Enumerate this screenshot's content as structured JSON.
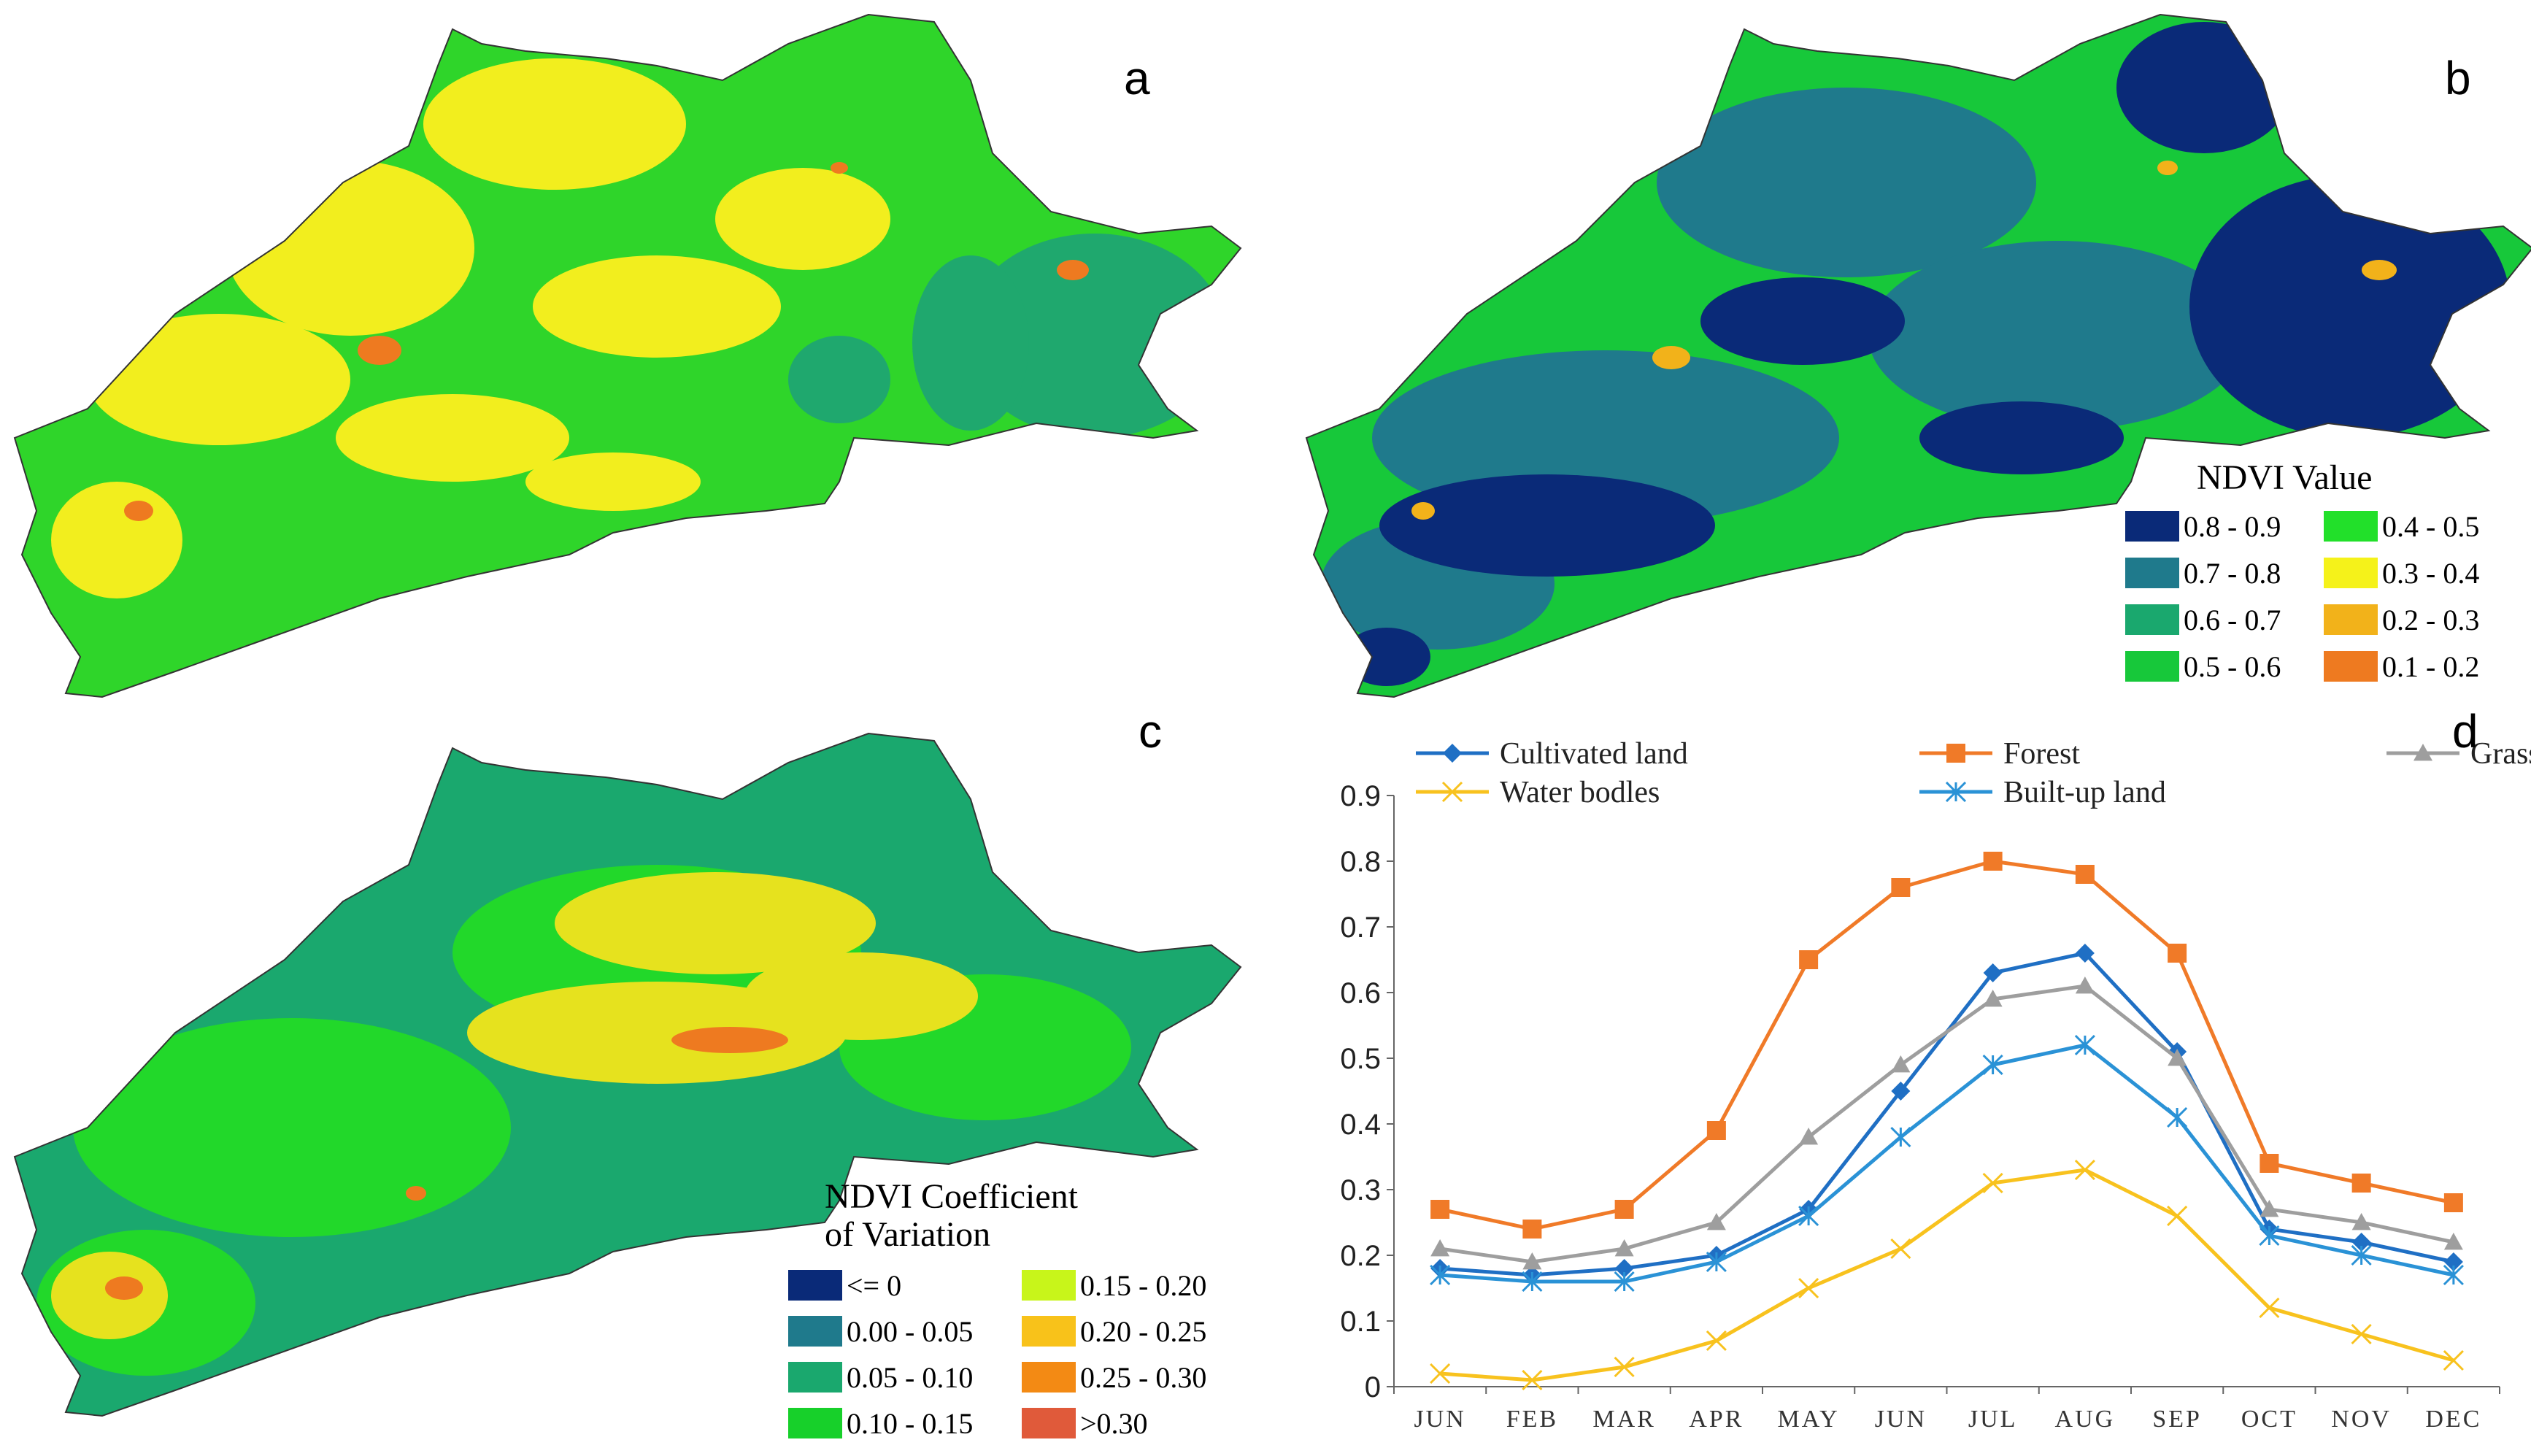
{
  "panels": {
    "a": {
      "letter": "a"
    },
    "b": {
      "letter": "b"
    },
    "c": {
      "letter": "c"
    },
    "d": {
      "letter": "d"
    }
  },
  "ndvi_legend": {
    "title": "NDVI Value",
    "items": [
      {
        "label": "0.8 - 0.9",
        "color": "#0a2a78"
      },
      {
        "label": "0.7 - 0.8",
        "color": "#1f7a8c"
      },
      {
        "label": "0.6 - 0.7",
        "color": "#1aa86e"
      },
      {
        "label": "0.5 - 0.6",
        "color": "#17c83a"
      },
      {
        "label": "0.4 - 0.5",
        "color": "#22e02a"
      },
      {
        "label": "0.3 - 0.4",
        "color": "#f5f21a"
      },
      {
        "label": "0.2 - 0.3",
        "color": "#f2b21a"
      },
      {
        "label": "0.1 - 0.2",
        "color": "#ee7a20"
      }
    ]
  },
  "cv_legend": {
    "title_line1": "NDVI  Coefficient",
    "title_line2": "of Variation",
    "items": [
      {
        "label": "<= 0",
        "color": "#0a2a78"
      },
      {
        "label": "0.00 - 0.05",
        "color": "#1f7a8c"
      },
      {
        "label": "0.05 - 0.10",
        "color": "#1aa86e"
      },
      {
        "label": "0.10 - 0.15",
        "color": "#17d02a"
      },
      {
        "label": "0.15 - 0.20",
        "color": "#c8f51a"
      },
      {
        "label": "0.20 - 0.25",
        "color": "#f8c21a"
      },
      {
        "label": "0.25 - 0.30",
        "color": "#f38a14"
      },
      {
        "label": ">0.30",
        "color": "#e05a3a"
      }
    ]
  },
  "map_colors": {
    "a": {
      "base": "#2fd52a",
      "secondary": "#f2ee1e",
      "tertiary": "#1fa86e",
      "accent": "#ee7a20"
    },
    "b": {
      "base": "#17c83a",
      "secondary": "#1f7a8c",
      "tertiary": "#0a2a78",
      "accent": "#f2b21a"
    },
    "c": {
      "base": "#1aa86e",
      "secondary": "#22d82a",
      "tertiary": "#e6e21e",
      "accent": "#ee7a20"
    }
  },
  "chart_data": {
    "type": "line",
    "categories": [
      "JUN",
      "FEB",
      "MAR",
      "APR",
      "MAY",
      "JUN",
      "JUL",
      "AUG",
      "SEP",
      "OCT",
      "NOV",
      "DEC"
    ],
    "ylim": [
      0,
      0.9
    ],
    "yticks": [
      "0",
      "0.1",
      "0.2",
      "0.3",
      "0.4",
      "0.5",
      "0.6",
      "0.7",
      "0.8",
      "0.9"
    ],
    "ytick_values": [
      0,
      0.1,
      0.2,
      0.3,
      0.4,
      0.5,
      0.6,
      0.7,
      0.8,
      0.9
    ],
    "xlabel": "",
    "ylabel": "",
    "series": [
      {
        "name": "Cultivated land",
        "color": "#1f6fc4",
        "marker": "diamond",
        "values": [
          0.18,
          0.17,
          0.18,
          0.2,
          0.27,
          0.45,
          0.63,
          0.66,
          0.51,
          0.24,
          0.22,
          0.19
        ]
      },
      {
        "name": "Forest",
        "color": "#f07a28",
        "marker": "square",
        "values": [
          0.27,
          0.24,
          0.27,
          0.39,
          0.65,
          0.76,
          0.8,
          0.78,
          0.66,
          0.34,
          0.31,
          0.28
        ]
      },
      {
        "name": "Grassland",
        "color": "#9e9e9e",
        "marker": "triangle",
        "values": [
          0.21,
          0.19,
          0.21,
          0.25,
          0.38,
          0.49,
          0.59,
          0.61,
          0.5,
          0.27,
          0.25,
          0.22
        ]
      },
      {
        "name": "Water bodles",
        "color": "#f8c21e",
        "marker": "x",
        "values": [
          0.02,
          0.01,
          0.03,
          0.07,
          0.15,
          0.21,
          0.31,
          0.33,
          0.26,
          0.12,
          0.08,
          0.04
        ]
      },
      {
        "name": "Built-up land",
        "color": "#2a92d6",
        "marker": "star",
        "values": [
          0.17,
          0.16,
          0.16,
          0.19,
          0.26,
          0.38,
          0.49,
          0.52,
          0.41,
          0.23,
          0.2,
          0.17
        ]
      }
    ]
  }
}
